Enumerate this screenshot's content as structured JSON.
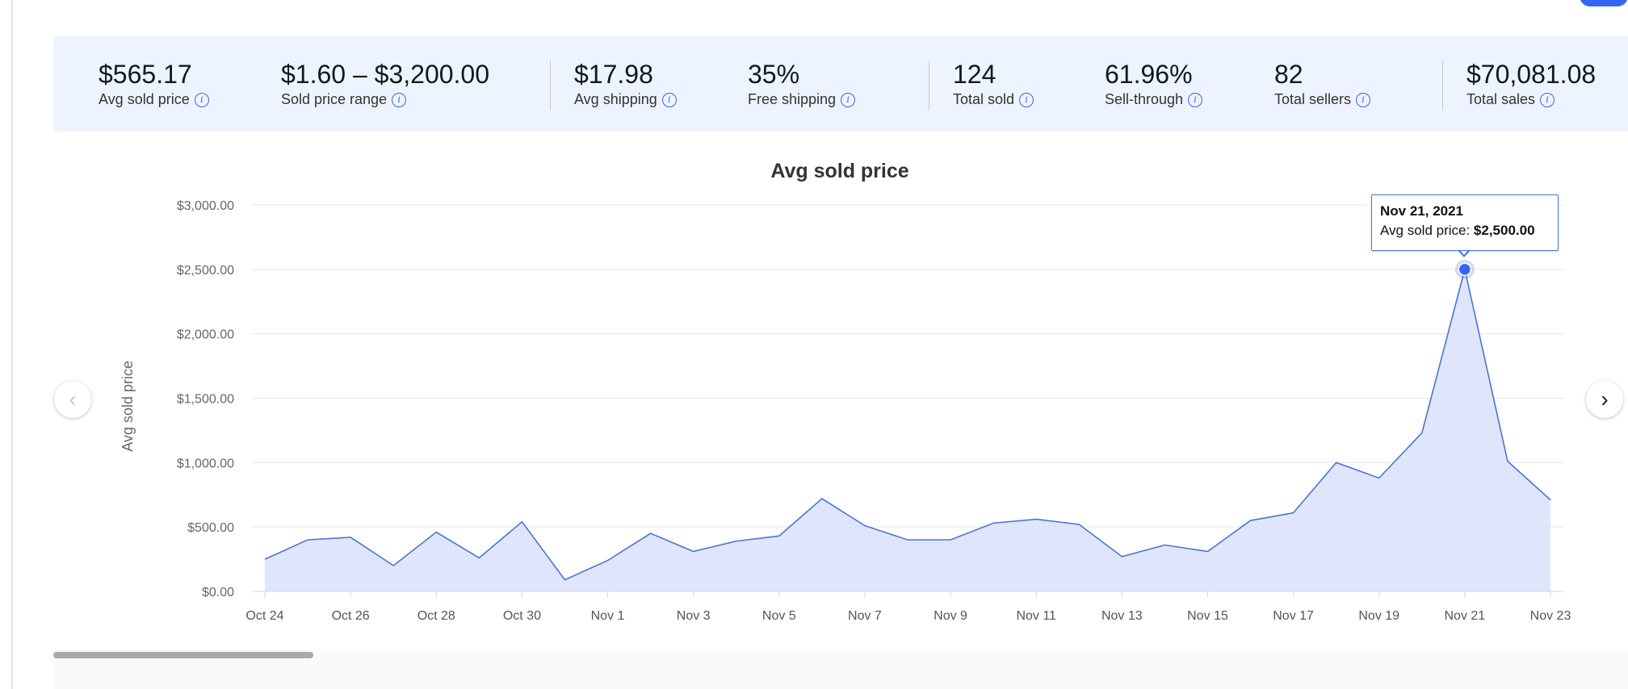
{
  "stats": [
    {
      "value": "$565.17",
      "label": "Avg sold price"
    },
    {
      "value": "$1.60 – $3,200.00",
      "label": "Sold price range"
    },
    {
      "value": "$17.98",
      "label": "Avg shipping"
    },
    {
      "value": "35%",
      "label": "Free shipping"
    },
    {
      "value": "124",
      "label": "Total sold"
    },
    {
      "value": "61.96%",
      "label": "Sell-through"
    },
    {
      "value": "82",
      "label": "Total sellers"
    },
    {
      "value": "$70,081.08",
      "label": "Total sales"
    }
  ],
  "info_icon_glyph": "i",
  "nav": {
    "prev_glyph": "‹",
    "next_glyph": "›"
  },
  "tooltip": {
    "date": "Nov 21, 2021",
    "label": "Avg sold price: ",
    "value": "$2,500.00"
  },
  "colors": {
    "line": "#4a74d8",
    "fill": "#d9e2fb",
    "accent": "#3665f3",
    "stats_bg": "#eef4ff"
  },
  "chart_data": {
    "type": "area",
    "title": "Avg sold price",
    "ylabel": "Avg sold price",
    "xlabel": "",
    "ylim": [
      0,
      3000
    ],
    "yticks": [
      "$0.00",
      "$500.00",
      "$1,000.00",
      "$1,500.00",
      "$2,000.00",
      "$2,500.00",
      "$3,000.00"
    ],
    "xtick_labels": [
      "Oct 24",
      "Oct 26",
      "Oct 28",
      "Oct 30",
      "Nov 1",
      "Nov 3",
      "Nov 5",
      "Nov 7",
      "Nov 9",
      "Nov 11",
      "Nov 13",
      "Nov 15",
      "Nov 17",
      "Nov 19",
      "Nov 21",
      "Nov 23"
    ],
    "x": [
      "Oct 24",
      "Oct 25",
      "Oct 26",
      "Oct 27",
      "Oct 28",
      "Oct 29",
      "Oct 30",
      "Oct 31",
      "Nov 1",
      "Nov 2",
      "Nov 3",
      "Nov 4",
      "Nov 5",
      "Nov 6",
      "Nov 7",
      "Nov 8",
      "Nov 9",
      "Nov 10",
      "Nov 11",
      "Nov 12",
      "Nov 13",
      "Nov 14",
      "Nov 15",
      "Nov 16",
      "Nov 17",
      "Nov 18",
      "Nov 19",
      "Nov 20",
      "Nov 21",
      "Nov 22",
      "Nov 23"
    ],
    "series": [
      {
        "values": [
          250,
          400,
          420,
          200,
          460,
          260,
          540,
          90,
          240,
          450,
          310,
          390,
          430,
          720,
          510,
          400,
          400,
          530,
          560,
          520,
          270,
          360,
          310,
          550,
          610,
          1000,
          880,
          1230,
          2500,
          1010,
          710
        ]
      }
    ],
    "highlight_index": 28,
    "grid": true
  }
}
